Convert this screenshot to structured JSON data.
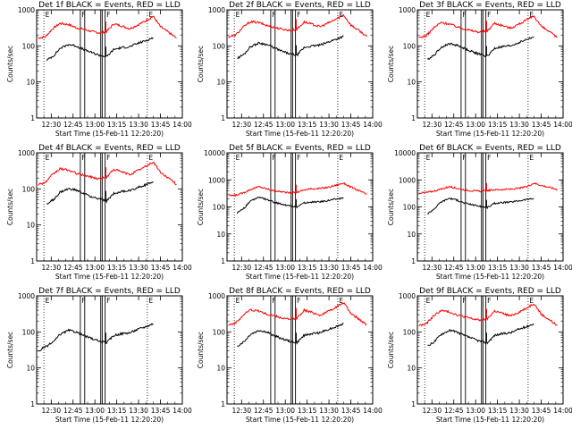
{
  "chart_data": [
    {
      "type": "line",
      "title": "Det 1f BLACK = Events, RED = LLD",
      "xlabel": "Start Time (15-Feb-11 12:20:20)",
      "ylabel": "Counts/sec",
      "yscale": "log",
      "ylim": [
        1,
        1000
      ],
      "ytick_labels": [
        "1",
        "10",
        "100",
        "1000"
      ],
      "xlim": [
        "12:20",
        "14:00"
      ],
      "xtick_labels": [
        "12:30",
        "12:45",
        "13:00",
        "13:15",
        "13:30",
        "13:45",
        "14:00"
      ],
      "series": [
        {
          "color": "#ff0000",
          "x": [
            "12:21",
            "12:26",
            "12:31",
            "12:36",
            "12:42",
            "12:47",
            "12:52",
            "12:58",
            "13:03",
            "13:08",
            "13:13",
            "13:19",
            "13:24",
            "13:30",
            "13:35",
            "13:40",
            "13:45",
            "13:51",
            "13:56"
          ],
          "y": [
            165,
            180,
            300,
            420,
            390,
            320,
            290,
            250,
            230,
            250,
            410,
            350,
            300,
            390,
            500,
            660,
            340,
            230,
            165
          ]
        },
        {
          "color": "#000000",
          "x": [
            "12:27",
            "12:32",
            "12:36",
            "12:42",
            "12:47",
            "12:52",
            "12:58",
            "13:03",
            "13:08",
            "13:13",
            "13:19",
            "13:24",
            "13:30",
            "13:35",
            "13:40"
          ],
          "y": [
            40,
            55,
            85,
            110,
            100,
            80,
            65,
            55,
            50,
            80,
            90,
            95,
            120,
            140,
            170
          ]
        }
      ]
    },
    {
      "type": "line",
      "title": "Det 2f BLACK = Events, RED = LLD",
      "xlabel": "Start Time (15-Feb-11 12:20:20)",
      "ylabel": "Counts/sec",
      "yscale": "log",
      "ylim": [
        1,
        1000
      ],
      "ytick_labels": [
        "1",
        "10",
        "100",
        "1000"
      ],
      "xlim": [
        "12:20",
        "14:00"
      ],
      "xtick_labels": [
        "12:30",
        "12:45",
        "13:00",
        "13:15",
        "13:30",
        "13:45",
        "14:00"
      ],
      "series": [
        {
          "color": "#ff0000",
          "x": [
            "12:21",
            "12:26",
            "12:31",
            "12:36",
            "12:42",
            "12:47",
            "12:52",
            "12:58",
            "13:03",
            "13:08",
            "13:13",
            "13:19",
            "13:24",
            "13:30",
            "13:35",
            "13:40",
            "13:45",
            "13:51",
            "13:56"
          ],
          "y": [
            180,
            200,
            330,
            470,
            440,
            370,
            330,
            290,
            270,
            290,
            460,
            390,
            340,
            440,
            560,
            720,
            380,
            260,
            180
          ]
        },
        {
          "color": "#000000",
          "x": [
            "12:27",
            "12:32",
            "12:36",
            "12:42",
            "12:47",
            "12:52",
            "12:58",
            "13:03",
            "13:08",
            "13:13",
            "13:19",
            "13:24",
            "13:30",
            "13:35",
            "13:40"
          ],
          "y": [
            45,
            60,
            95,
            120,
            110,
            90,
            70,
            60,
            55,
            90,
            100,
            105,
            130,
            155,
            185
          ]
        }
      ]
    },
    {
      "type": "line",
      "title": "Det 3f BLACK = Events, RED = LLD",
      "xlabel": "Start Time (15-Feb-11 12:20:20)",
      "ylabel": "Counts/sec",
      "yscale": "log",
      "ylim": [
        1,
        1000
      ],
      "ytick_labels": [
        "1",
        "10",
        "100",
        "1000"
      ],
      "xlim": [
        "12:20",
        "14:00"
      ],
      "xtick_labels": [
        "12:30",
        "12:45",
        "13:00",
        "13:15",
        "13:30",
        "13:45",
        "14:00"
      ],
      "series": [
        {
          "color": "#ff0000",
          "x": [
            "12:21",
            "12:26",
            "12:31",
            "12:36",
            "12:42",
            "12:47",
            "12:52",
            "12:58",
            "13:03",
            "13:08",
            "13:13",
            "13:19",
            "13:24",
            "13:30",
            "13:35",
            "13:40",
            "13:45",
            "13:51",
            "13:56"
          ],
          "y": [
            170,
            190,
            310,
            440,
            410,
            340,
            300,
            260,
            240,
            260,
            430,
            360,
            310,
            410,
            520,
            680,
            350,
            240,
            170
          ]
        },
        {
          "color": "#000000",
          "x": [
            "12:27",
            "12:32",
            "12:36",
            "12:42",
            "12:47",
            "12:52",
            "12:58",
            "13:03",
            "13:08",
            "13:13",
            "13:19",
            "13:24",
            "13:30",
            "13:35",
            "13:40"
          ],
          "y": [
            42,
            58,
            90,
            115,
            105,
            85,
            68,
            58,
            52,
            85,
            95,
            100,
            125,
            150,
            178
          ]
        }
      ]
    },
    {
      "type": "line",
      "title": "Det 4f BLACK = Events, RED = LLD",
      "xlabel": "Start Time (15-Feb-11 12:20:20)",
      "ylabel": "Counts/sec",
      "yscale": "log",
      "ylim": [
        1,
        1000
      ],
      "ytick_labels": [
        "1",
        "10",
        "100",
        "1000"
      ],
      "xlim": [
        "12:20",
        "14:00"
      ],
      "xtick_labels": [
        "12:30",
        "12:45",
        "13:00",
        "13:15",
        "13:30",
        "13:45",
        "14:00"
      ],
      "series": [
        {
          "color": "#ff0000",
          "x": [
            "12:21",
            "12:26",
            "12:31",
            "12:36",
            "12:42",
            "12:47",
            "12:52",
            "12:58",
            "13:03",
            "13:08",
            "13:13",
            "13:19",
            "13:24",
            "13:30",
            "13:35",
            "13:40",
            "13:45",
            "13:51",
            "13:56"
          ],
          "y": [
            135,
            150,
            250,
            360,
            330,
            270,
            240,
            210,
            190,
            210,
            350,
            290,
            250,
            330,
            420,
            560,
            290,
            190,
            135
          ]
        },
        {
          "color": "#000000",
          "x": [
            "12:27",
            "12:32",
            "12:36",
            "12:42",
            "12:47",
            "12:52",
            "12:58",
            "13:03",
            "13:08",
            "13:13",
            "13:19",
            "13:24",
            "13:30",
            "13:35",
            "13:40"
          ],
          "y": [
            38,
            52,
            80,
            100,
            92,
            75,
            60,
            52,
            46,
            75,
            85,
            90,
            112,
            130,
            160
          ]
        }
      ]
    },
    {
      "type": "line",
      "title": "Det 5f BLACK = Events, RED = LLD",
      "xlabel": "Start Time (15-Feb-11 12:20:20)",
      "ylabel": "Counts/sec",
      "yscale": "log",
      "ylim": [
        1,
        10000
      ],
      "ytick_labels": [
        "1",
        "10",
        "100",
        "1000",
        "10000"
      ],
      "xlim": [
        "12:20",
        "14:00"
      ],
      "xtick_labels": [
        "12:30",
        "12:45",
        "13:00",
        "13:15",
        "13:30",
        "13:45",
        "14:00"
      ],
      "series": [
        {
          "color": "#ff0000",
          "x": [
            "12:21",
            "12:26",
            "12:31",
            "12:36",
            "12:42",
            "12:47",
            "12:52",
            "12:58",
            "13:03",
            "13:08",
            "13:13",
            "13:19",
            "13:24",
            "13:30",
            "13:35",
            "13:40",
            "13:45",
            "13:51",
            "13:56"
          ],
          "y": [
            260,
            270,
            330,
            440,
            560,
            470,
            400,
            360,
            330,
            350,
            430,
            470,
            480,
            540,
            640,
            760,
            540,
            390,
            290
          ]
        },
        {
          "color": "#000000",
          "x": [
            "12:27",
            "12:32",
            "12:36",
            "12:42",
            "12:47",
            "12:52",
            "12:58",
            "13:03",
            "13:08",
            "13:13",
            "13:19",
            "13:24",
            "13:30",
            "13:35",
            "13:40"
          ],
          "y": [
            60,
            95,
            160,
            230,
            190,
            150,
            125,
            110,
            100,
            140,
            150,
            155,
            175,
            195,
            210
          ]
        }
      ]
    },
    {
      "type": "line",
      "title": "Det 6f BLACK = Events, RED = LLD",
      "xlabel": "Start Time (15-Feb-11 12:20:20)",
      "ylabel": "Counts/sec",
      "yscale": "log",
      "ylim": [
        1,
        10000
      ],
      "ytick_labels": [
        "1",
        "10",
        "100",
        "1000",
        "10000"
      ],
      "xlim": [
        "12:20",
        "14:00"
      ],
      "xtick_labels": [
        "12:30",
        "12:45",
        "13:00",
        "13:15",
        "13:30",
        "13:45",
        "14:00"
      ],
      "series": [
        {
          "color": "#ff0000",
          "x": [
            "12:21",
            "12:26",
            "12:31",
            "12:36",
            "12:42",
            "12:47",
            "12:52",
            "12:58",
            "13:03",
            "13:08",
            "13:13",
            "13:19",
            "13:24",
            "13:30",
            "13:35",
            "13:40",
            "13:45",
            "13:51",
            "13:56"
          ],
          "y": [
            330,
            340,
            380,
            450,
            560,
            490,
            430,
            390,
            380,
            400,
            430,
            440,
            450,
            490,
            560,
            760,
            620,
            520,
            440
          ]
        },
        {
          "color": "#000000",
          "x": [
            "12:27",
            "12:32",
            "12:36",
            "12:42",
            "12:47",
            "12:52",
            "12:58",
            "13:03",
            "13:08",
            "13:13",
            "13:19",
            "13:24",
            "13:30",
            "13:35",
            "13:40"
          ],
          "y": [
            55,
            90,
            150,
            210,
            180,
            140,
            120,
            105,
            95,
            135,
            145,
            150,
            170,
            190,
            205
          ]
        }
      ]
    },
    {
      "type": "line",
      "title": "Det 7f BLACK = Events, RED = LLD",
      "xlabel": "Start Time (15-Feb-11 12:20:20)",
      "ylabel": "Counts/sec",
      "yscale": "log",
      "ylim": [
        1,
        1000
      ],
      "ytick_labels": [
        "1",
        "10",
        "100",
        "1000"
      ],
      "xlim": [
        "12:20",
        "14:00"
      ],
      "xtick_labels": [
        "12:30",
        "12:45",
        "13:00",
        "13:15",
        "13:30",
        "13:45",
        "14:00"
      ],
      "series": [
        {
          "color": "#000000",
          "x": [
            "12:21",
            "12:24",
            "12:27",
            "12:32",
            "12:36",
            "12:42",
            "12:47",
            "12:52",
            "12:58",
            "13:03",
            "13:08",
            "13:13",
            "13:19",
            "13:24",
            "13:30",
            "13:35",
            "13:40"
          ],
          "y": [
            28,
            35,
            40,
            55,
            85,
            110,
            100,
            80,
            65,
            55,
            50,
            80,
            90,
            95,
            120,
            140,
            170
          ]
        }
      ]
    },
    {
      "type": "line",
      "title": "Det 8f BLACK = Events, RED = LLD",
      "xlabel": "Start Time (15-Feb-11 12:20:20)",
      "ylabel": "Counts/sec",
      "yscale": "log",
      "ylim": [
        1,
        1000
      ],
      "ytick_labels": [
        "1",
        "10",
        "100",
        "1000"
      ],
      "xlim": [
        "12:20",
        "14:00"
      ],
      "xtick_labels": [
        "12:30",
        "12:45",
        "13:00",
        "13:15",
        "13:30",
        "13:45",
        "14:00"
      ],
      "series": [
        {
          "color": "#ff0000",
          "x": [
            "12:21",
            "12:26",
            "12:31",
            "12:36",
            "12:42",
            "12:47",
            "12:52",
            "12:58",
            "13:03",
            "13:08",
            "13:13",
            "13:19",
            "13:24",
            "13:30",
            "13:35",
            "13:40",
            "13:45",
            "13:51",
            "13:56"
          ],
          "y": [
            160,
            175,
            290,
            410,
            380,
            310,
            280,
            240,
            220,
            240,
            400,
            340,
            290,
            380,
            490,
            650,
            330,
            220,
            160
          ]
        },
        {
          "color": "#000000",
          "x": [
            "12:27",
            "12:32",
            "12:36",
            "12:42",
            "12:47",
            "12:52",
            "12:58",
            "13:03",
            "13:08",
            "13:13",
            "13:19",
            "13:24",
            "13:30",
            "13:35",
            "13:40"
          ],
          "y": [
            40,
            55,
            85,
            110,
            100,
            80,
            65,
            55,
            50,
            80,
            90,
            95,
            120,
            140,
            170
          ]
        }
      ]
    },
    {
      "type": "line",
      "title": "Det 9f BLACK = Events, RED = LLD",
      "xlabel": "Start Time (15-Feb-11 12:20:20)",
      "ylabel": "Counts/sec",
      "yscale": "log",
      "ylim": [
        1,
        1000
      ],
      "ytick_labels": [
        "1",
        "10",
        "100",
        "1000"
      ],
      "xlim": [
        "12:20",
        "14:00"
      ],
      "xtick_labels": [
        "12:30",
        "12:45",
        "13:00",
        "13:15",
        "13:30",
        "13:45",
        "14:00"
      ],
      "series": [
        {
          "color": "#ff0000",
          "x": [
            "12:21",
            "12:26",
            "12:31",
            "12:36",
            "12:42",
            "12:47",
            "12:52",
            "12:58",
            "13:03",
            "13:08",
            "13:13",
            "13:19",
            "13:24",
            "13:30",
            "13:35",
            "13:40",
            "13:45",
            "13:51",
            "13:56"
          ],
          "y": [
            150,
            165,
            275,
            390,
            360,
            300,
            265,
            230,
            210,
            230,
            380,
            320,
            275,
            360,
            460,
            620,
            310,
            210,
            150
          ]
        },
        {
          "color": "#000000",
          "x": [
            "12:27",
            "12:32",
            "12:36",
            "12:42",
            "12:47",
            "12:52",
            "12:58",
            "13:03",
            "13:08",
            "13:13",
            "13:19",
            "13:24",
            "13:30",
            "13:35",
            "13:40"
          ],
          "y": [
            40,
            55,
            85,
            110,
            100,
            80,
            65,
            55,
            50,
            80,
            90,
            95,
            120,
            140,
            170
          ]
        }
      ]
    }
  ]
}
